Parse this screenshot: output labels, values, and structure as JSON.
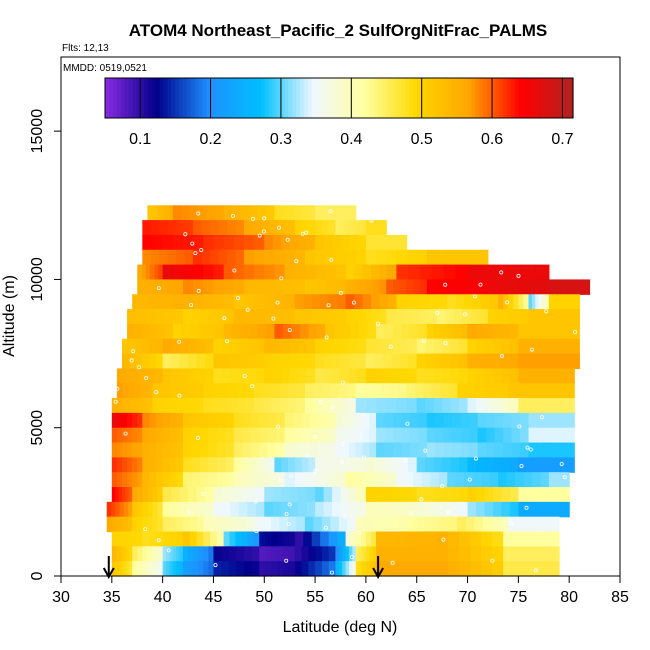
{
  "chart_data": {
    "type": "heatmap",
    "title": "ATOM4 Northeast_Pacific_2 SulfOrgNitFrac_PALMS",
    "flights": "Flts: 12,13",
    "dates": "MMDD: 0519,0521",
    "xlabel": "Latitude (deg N)",
    "ylabel": "Altitude (m)",
    "xlim": [
      30,
      85
    ],
    "ylim": [
      0,
      17500
    ],
    "x_ticks": [
      30,
      35,
      40,
      45,
      50,
      55,
      60,
      65,
      70,
      75,
      80,
      85
    ],
    "y_ticks": [
      0,
      5000,
      10000,
      15000
    ],
    "colorbar": {
      "range": [
        0.05,
        0.715
      ],
      "ticks": [
        0.1,
        0.2,
        0.3,
        0.4,
        0.5,
        0.6,
        0.7
      ],
      "colors": [
        "#8a2be2",
        "#00008b",
        "#1e90ff",
        "#00bfff",
        "#f0f8ff",
        "#ffffa0",
        "#ffd700",
        "#ffa500",
        "#ff0000",
        "#b22222"
      ]
    },
    "arrows_latitude": [
      34.7,
      61.2
    ],
    "altitude_bins_m": [
      0,
      500,
      1000,
      1500,
      2000,
      2500,
      3000,
      3500,
      4000,
      4500,
      5000,
      5500,
      6000,
      6500,
      7000,
      7500,
      8000,
      8500,
      9000,
      9500,
      10000,
      10500,
      11000,
      11500,
      12000
    ],
    "rows": [
      {
        "alt": 12000,
        "lat_min": 38.5,
        "lat_max": 59,
        "segments": [
          [
            38.5,
            0.52
          ],
          [
            41,
            0.58
          ],
          [
            46,
            0.55
          ],
          [
            51,
            0.48
          ],
          [
            55,
            0.45
          ],
          [
            59,
            null
          ]
        ]
      },
      {
        "alt": 11500,
        "lat_min": 38,
        "lat_max": 62,
        "segments": [
          [
            38,
            0.63
          ],
          [
            43,
            0.6
          ],
          [
            48,
            0.56
          ],
          [
            53,
            0.5
          ],
          [
            57,
            0.45
          ],
          [
            60,
            0.48
          ],
          [
            62,
            null
          ]
        ]
      },
      {
        "alt": 11000,
        "lat_min": 38,
        "lat_max": 64,
        "segments": [
          [
            38,
            0.64
          ],
          [
            44,
            0.62
          ],
          [
            50,
            0.58
          ],
          [
            55,
            0.52
          ],
          [
            60,
            0.47
          ],
          [
            64,
            null
          ]
        ]
      },
      {
        "alt": 10500,
        "lat_min": 38,
        "lat_max": 72,
        "segments": [
          [
            38,
            0.58
          ],
          [
            43,
            0.62
          ],
          [
            48,
            0.57
          ],
          [
            54,
            0.52
          ],
          [
            60,
            0.48
          ],
          [
            66,
            0.52
          ],
          [
            72,
            null
          ]
        ]
      },
      {
        "alt": 10000,
        "lat_min": 37.5,
        "lat_max": 78,
        "segments": [
          [
            37.5,
            0.56
          ],
          [
            40,
            0.66
          ],
          [
            46,
            0.6
          ],
          [
            52,
            0.55
          ],
          [
            58,
            0.5
          ],
          [
            63,
            0.62
          ],
          [
            70,
            0.66
          ],
          [
            78,
            null
          ]
        ]
      },
      {
        "alt": 9500,
        "lat_min": 37.5,
        "lat_max": 82,
        "segments": [
          [
            37.5,
            0.55
          ],
          [
            42,
            0.58
          ],
          [
            48,
            0.54
          ],
          [
            54,
            0.52
          ],
          [
            58,
            0.55
          ],
          [
            62,
            0.6
          ],
          [
            66,
            0.64
          ],
          [
            72,
            0.66
          ],
          [
            78,
            0.68
          ],
          [
            82,
            null
          ]
        ]
      },
      {
        "alt": 9000,
        "lat_min": 37,
        "lat_max": 81,
        "segments": [
          [
            37,
            0.54
          ],
          [
            41,
            0.55
          ],
          [
            47,
            0.52
          ],
          [
            53,
            0.57
          ],
          [
            58,
            0.6
          ],
          [
            63,
            0.5
          ],
          [
            68,
            0.48
          ],
          [
            73,
            0.55
          ],
          [
            76,
            0.3
          ],
          [
            78,
            0.5
          ],
          [
            81,
            null
          ]
        ]
      },
      {
        "alt": 8500,
        "lat_min": 36.5,
        "lat_max": 81,
        "segments": [
          [
            36.5,
            0.53
          ],
          [
            42,
            0.5
          ],
          [
            47,
            0.54
          ],
          [
            53,
            0.52
          ],
          [
            58,
            0.5
          ],
          [
            62,
            0.46
          ],
          [
            67,
            0.44
          ],
          [
            72,
            0.5
          ],
          [
            76,
            0.52
          ],
          [
            81,
            null
          ]
        ]
      },
      {
        "alt": 8000,
        "lat_min": 36.5,
        "lat_max": 81,
        "segments": [
          [
            36.5,
            0.55
          ],
          [
            41,
            0.5
          ],
          [
            46,
            0.54
          ],
          [
            51,
            0.6
          ],
          [
            56,
            0.52
          ],
          [
            61,
            0.45
          ],
          [
            66,
            0.5
          ],
          [
            70,
            0.56
          ],
          [
            75,
            0.52
          ],
          [
            81,
            null
          ]
        ]
      },
      {
        "alt": 7500,
        "lat_min": 36,
        "lat_max": 81,
        "segments": [
          [
            36,
            0.52
          ],
          [
            40,
            0.56
          ],
          [
            45,
            0.5
          ],
          [
            50,
            0.54
          ],
          [
            55,
            0.5
          ],
          [
            60,
            0.47
          ],
          [
            65,
            0.44
          ],
          [
            70,
            0.5
          ],
          [
            75,
            0.55
          ],
          [
            81,
            null
          ]
        ]
      },
      {
        "alt": 7000,
        "lat_min": 36,
        "lat_max": 81,
        "segments": [
          [
            36,
            0.54
          ],
          [
            40,
            0.45
          ],
          [
            45,
            0.52
          ],
          [
            50,
            0.5
          ],
          [
            55,
            0.48
          ],
          [
            60,
            0.45
          ],
          [
            65,
            0.5
          ],
          [
            70,
            0.55
          ],
          [
            75,
            0.57
          ],
          [
            81,
            null
          ]
        ]
      },
      {
        "alt": 6500,
        "lat_min": 35.5,
        "lat_max": 80.5,
        "segments": [
          [
            35.5,
            0.56
          ],
          [
            40,
            0.52
          ],
          [
            45,
            0.48
          ],
          [
            50,
            0.5
          ],
          [
            55,
            0.46
          ],
          [
            60,
            0.5
          ],
          [
            65,
            0.48
          ],
          [
            70,
            0.5
          ],
          [
            75,
            0.55
          ],
          [
            80.5,
            null
          ]
        ]
      },
      {
        "alt": 6000,
        "lat_min": 35.5,
        "lat_max": 80.5,
        "segments": [
          [
            35.5,
            0.57
          ],
          [
            39,
            0.52
          ],
          [
            44,
            0.5
          ],
          [
            49,
            0.48
          ],
          [
            54,
            0.45
          ],
          [
            59,
            0.42
          ],
          [
            64,
            0.44
          ],
          [
            69,
            0.5
          ],
          [
            74,
            0.52
          ],
          [
            80.5,
            null
          ]
        ]
      },
      {
        "alt": 5500,
        "lat_min": 35,
        "lat_max": 80.5,
        "segments": [
          [
            35,
            0.55
          ],
          [
            39,
            0.5
          ],
          [
            44,
            0.48
          ],
          [
            49,
            0.46
          ],
          [
            54,
            0.42
          ],
          [
            59,
            0.32
          ],
          [
            65,
            0.3
          ],
          [
            70,
            0.34
          ],
          [
            75,
            0.45
          ],
          [
            80.5,
            null
          ]
        ]
      },
      {
        "alt": 5000,
        "lat_min": 35,
        "lat_max": 80.5,
        "segments": [
          [
            35,
            0.66
          ],
          [
            38,
            0.58
          ],
          [
            42,
            0.52
          ],
          [
            47,
            0.48
          ],
          [
            52,
            0.44
          ],
          [
            57,
            0.38
          ],
          [
            61,
            0.3
          ],
          [
            66,
            0.28
          ],
          [
            71,
            0.3
          ],
          [
            76,
            0.32
          ],
          [
            80.5,
            null
          ]
        ]
      },
      {
        "alt": 4500,
        "lat_min": 35,
        "lat_max": 80.5,
        "segments": [
          [
            35,
            0.6
          ],
          [
            38,
            0.56
          ],
          [
            42,
            0.5
          ],
          [
            47,
            0.46
          ],
          [
            52,
            0.42
          ],
          [
            57,
            0.36
          ],
          [
            61,
            0.32
          ],
          [
            66,
            0.3
          ],
          [
            71,
            0.28
          ],
          [
            76,
            0.34
          ],
          [
            80.5,
            null
          ]
        ]
      },
      {
        "alt": 4000,
        "lat_min": 35,
        "lat_max": 80.5,
        "segments": [
          [
            35,
            0.58
          ],
          [
            38,
            0.55
          ],
          [
            42,
            0.5
          ],
          [
            47,
            0.45
          ],
          [
            52,
            0.38
          ],
          [
            57,
            0.35
          ],
          [
            61,
            0.3
          ],
          [
            66,
            0.32
          ],
          [
            71,
            0.3
          ],
          [
            76,
            0.28
          ],
          [
            80.5,
            null
          ]
        ]
      },
      {
        "alt": 3500,
        "lat_min": 35,
        "lat_max": 80.5,
        "segments": [
          [
            35,
            0.62
          ],
          [
            38,
            0.55
          ],
          [
            42,
            0.48
          ],
          [
            47,
            0.42
          ],
          [
            51,
            0.3
          ],
          [
            55,
            0.36
          ],
          [
            60,
            0.38
          ],
          [
            65,
            0.3
          ],
          [
            70,
            0.26
          ],
          [
            75,
            0.22
          ],
          [
            80.5,
            null
          ]
        ]
      },
      {
        "alt": 3000,
        "lat_min": 35,
        "lat_max": 80,
        "segments": [
          [
            35,
            0.6
          ],
          [
            38,
            0.54
          ],
          [
            42,
            0.44
          ],
          [
            47,
            0.4
          ],
          [
            52,
            0.34
          ],
          [
            58,
            0.42
          ],
          [
            63,
            0.35
          ],
          [
            68,
            0.3
          ],
          [
            73,
            0.28
          ],
          [
            78,
            0.32
          ],
          [
            80,
            null
          ]
        ]
      },
      {
        "alt": 2500,
        "lat_min": 35,
        "lat_max": 80,
        "segments": [
          [
            35,
            0.64
          ],
          [
            37,
            0.56
          ],
          [
            40,
            0.46
          ],
          [
            45,
            0.38
          ],
          [
            50,
            0.32
          ],
          [
            55,
            0.3
          ],
          [
            60,
            0.5
          ],
          [
            65,
            0.48
          ],
          [
            70,
            0.5
          ],
          [
            75,
            0.42
          ],
          [
            80,
            null
          ]
        ]
      },
      {
        "alt": 2000,
        "lat_min": 34.5,
        "lat_max": 80,
        "segments": [
          [
            34.5,
            0.62
          ],
          [
            37,
            0.52
          ],
          [
            40,
            0.42
          ],
          [
            45,
            0.35
          ],
          [
            50,
            0.3
          ],
          [
            55,
            0.33
          ],
          [
            60,
            0.4
          ],
          [
            65,
            0.38
          ],
          [
            70,
            0.32
          ],
          [
            75,
            0.24
          ],
          [
            80,
            null
          ]
        ]
      },
      {
        "alt": 1500,
        "lat_min": 34.5,
        "lat_max": 79,
        "segments": [
          [
            34.5,
            0.56
          ],
          [
            37,
            0.5
          ],
          [
            40,
            0.45
          ],
          [
            44,
            0.4
          ],
          [
            49,
            0.35
          ],
          [
            54,
            0.3
          ],
          [
            59,
            0.4
          ],
          [
            64,
            0.42
          ],
          [
            69,
            0.45
          ],
          [
            74,
            0.35
          ],
          [
            79,
            null
          ]
        ]
      },
      {
        "alt": 1000,
        "lat_min": 35,
        "lat_max": 79,
        "segments": [
          [
            35,
            0.5
          ],
          [
            38,
            0.48
          ],
          [
            42,
            0.52
          ],
          [
            46,
            0.3
          ],
          [
            49.5,
            0.13
          ],
          [
            53,
            0.1
          ],
          [
            58,
            0.38
          ],
          [
            61,
            0.54
          ],
          [
            67,
            0.55
          ],
          [
            73.5,
            0.42
          ],
          [
            79,
            null
          ]
        ]
      },
      {
        "alt": 500,
        "lat_min": 35,
        "lat_max": 79,
        "segments": [
          [
            35,
            0.54
          ],
          [
            37,
            0.45
          ],
          [
            40,
            0.32
          ],
          [
            42,
            0.25
          ],
          [
            45,
            0.12
          ],
          [
            49.5,
            0.08
          ],
          [
            53,
            0.1
          ],
          [
            57,
            0.2
          ],
          [
            59,
            0.45
          ],
          [
            61,
            0.55
          ],
          [
            67,
            0.55
          ],
          [
            73.5,
            0.45
          ],
          [
            79,
            null
          ]
        ]
      },
      {
        "alt": 0,
        "lat_min": 35,
        "lat_max": 79,
        "segments": [
          [
            35,
            0.52
          ],
          [
            37,
            0.42
          ],
          [
            40,
            0.3
          ],
          [
            42,
            0.22
          ],
          [
            45,
            0.14
          ],
          [
            49.5,
            0.1
          ],
          [
            53,
            0.12
          ],
          [
            57,
            0.25
          ],
          [
            59,
            0.48
          ],
          [
            61,
            0.56
          ],
          [
            67,
            0.56
          ],
          [
            73.5,
            0.46
          ],
          [
            79,
            null
          ]
        ]
      }
    ]
  }
}
